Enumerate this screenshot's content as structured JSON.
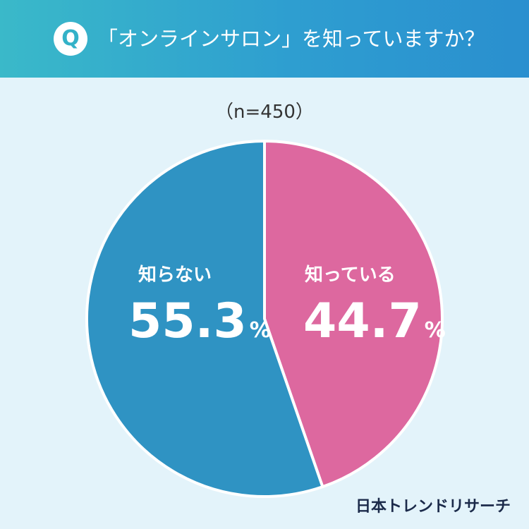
{
  "header": {
    "badge": "Q",
    "question": "「オンラインサロン」を知っていますか？"
  },
  "sample_size": "（n=450）",
  "logo": "日本トレンドリサーチ",
  "colors": {
    "header_start": "#3ab9c9",
    "header_end": "#2a8fcf",
    "background": "#e3f3fa",
    "slice_know": "#dd689f",
    "slice_dont_know": "#2f93c3"
  },
  "chart_data": {
    "type": "pie",
    "title": "「オンラインサロン」を知っていますか？",
    "start": "top, clockwise",
    "slices": [
      {
        "label": "知っている",
        "value": 44.7,
        "display": "44.7",
        "unit": "%",
        "color": "#dd689f"
      },
      {
        "label": "知らない",
        "value": 55.3,
        "display": "55.3",
        "unit": "%",
        "color": "#2f93c3"
      }
    ]
  }
}
